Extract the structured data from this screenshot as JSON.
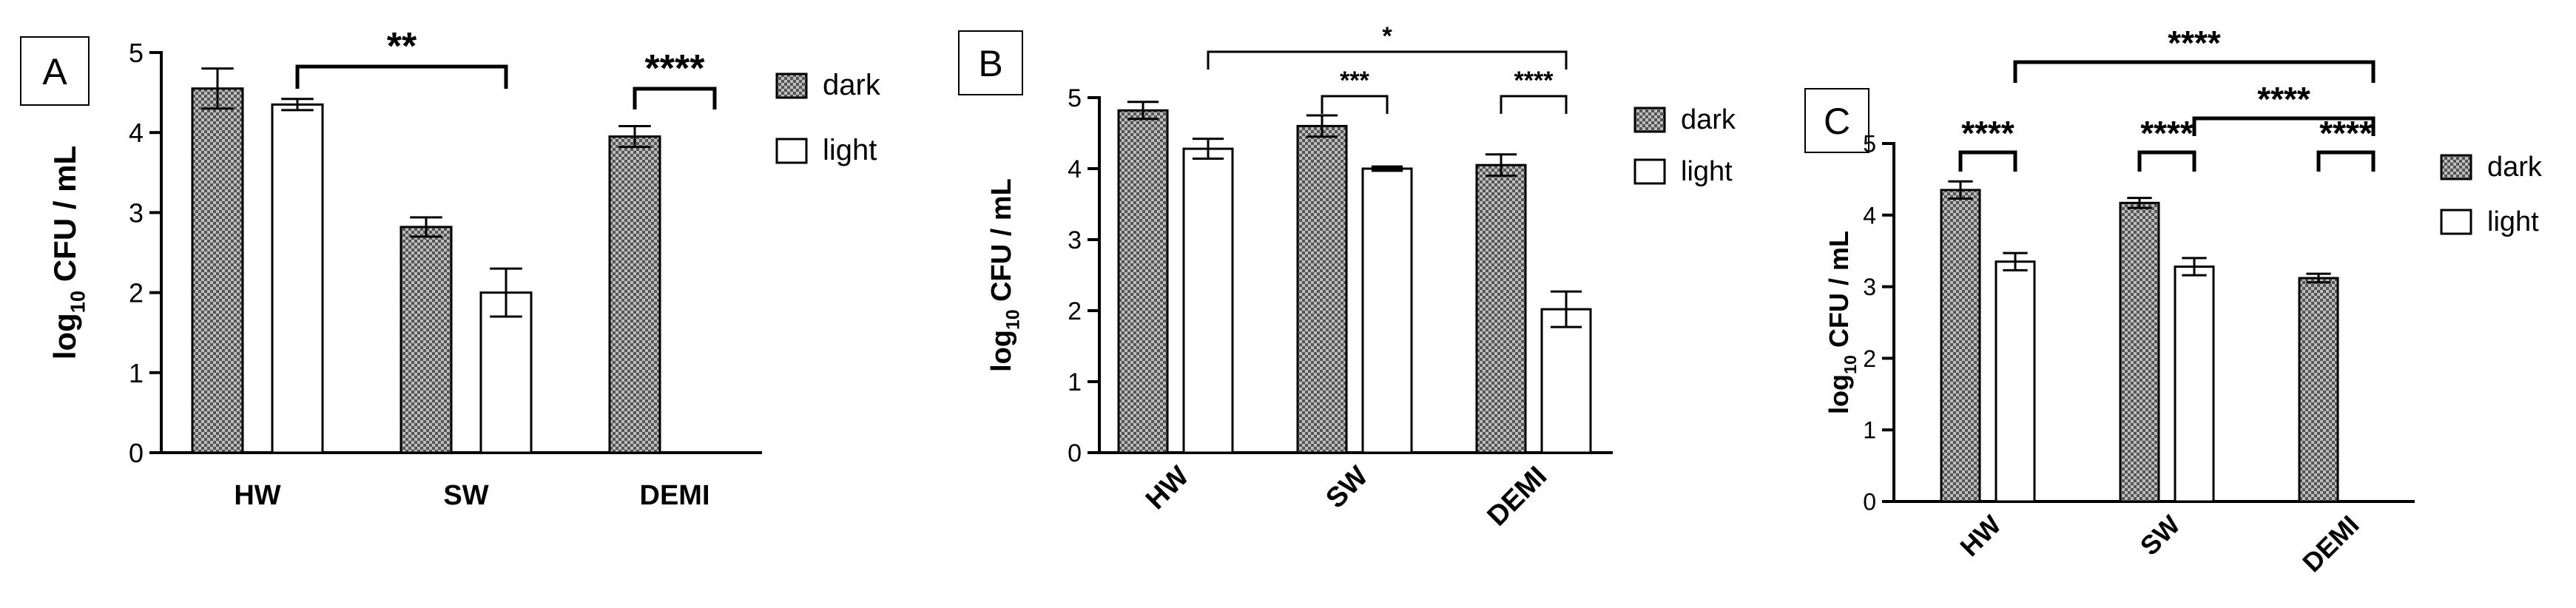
{
  "colors": {
    "dark_fill": "#555555",
    "dark_check": "#bdbdbd",
    "light_fill": "#ffffff",
    "stroke": "#000000"
  },
  "chart_data": [
    {
      "panel": "A",
      "type": "bar",
      "categories": [
        "HW",
        "SW",
        "DEMI"
      ],
      "ylabel": "log10 CFU / mL",
      "ylabel_main": "log",
      "ylabel_sub": "10",
      "ylabel_rest": " CFU / mL",
      "ylim": [
        0,
        5
      ],
      "yticks": [
        0,
        1,
        2,
        3,
        4,
        5
      ],
      "legend_position": "right",
      "series": [
        {
          "name": "dark",
          "pattern": "checkered",
          "values": [
            4.55,
            2.82,
            3.95
          ],
          "errors": [
            0.25,
            0.12,
            0.13
          ]
        },
        {
          "name": "light",
          "pattern": "hollow",
          "values": [
            4.35,
            2.0,
            null
          ],
          "errors": [
            0.07,
            0.3,
            null
          ]
        }
      ],
      "significance": [
        {
          "label": "**",
          "from": [
            0,
            1
          ],
          "to": [
            1,
            1
          ]
        },
        {
          "label": "****",
          "from": [
            2,
            0
          ],
          "to": [
            2,
            1
          ]
        }
      ]
    },
    {
      "panel": "B",
      "type": "bar",
      "categories": [
        "HW",
        "SW",
        "DEMI"
      ],
      "ylabel": "log10 CFU / mL",
      "ylabel_main": "log",
      "ylabel_sub": "10",
      "ylabel_rest": " CFU / mL",
      "ylim": [
        0,
        5
      ],
      "yticks": [
        0,
        1,
        2,
        3,
        4,
        5
      ],
      "legend_position": "right",
      "series": [
        {
          "name": "dark",
          "pattern": "checkered",
          "values": [
            4.82,
            4.6,
            4.05
          ],
          "errors": [
            0.12,
            0.15,
            0.15
          ]
        },
        {
          "name": "light",
          "pattern": "hollow",
          "values": [
            4.28,
            4.0,
            2.02
          ],
          "errors": [
            0.14,
            0.03,
            0.25
          ]
        }
      ],
      "significance": [
        {
          "label": "*",
          "from": [
            0,
            1
          ],
          "to": [
            2,
            1
          ]
        },
        {
          "label": "***",
          "from": [
            1,
            0
          ],
          "to": [
            1,
            1
          ]
        },
        {
          "label": "****",
          "from": [
            2,
            0
          ],
          "to": [
            2,
            1
          ]
        }
      ]
    },
    {
      "panel": "C",
      "type": "bar",
      "categories": [
        "HW",
        "SW",
        "DEMI"
      ],
      "ylabel": "log10 CFU / mL",
      "ylabel_main": "log",
      "ylabel_sub": "10",
      "ylabel_rest": " CFU / mL",
      "ylim": [
        0,
        5
      ],
      "yticks": [
        0,
        1,
        2,
        3,
        4,
        5
      ],
      "legend_position": "right",
      "series": [
        {
          "name": "dark",
          "pattern": "checkered",
          "values": [
            4.35,
            4.17,
            3.12
          ],
          "errors": [
            0.12,
            0.07,
            0.06
          ]
        },
        {
          "name": "light",
          "pattern": "hollow",
          "values": [
            3.35,
            3.28,
            null
          ],
          "errors": [
            0.12,
            0.12,
            null
          ]
        }
      ],
      "significance": [
        {
          "label": "****",
          "from": [
            0,
            0
          ],
          "to": [
            0,
            1
          ]
        },
        {
          "label": "****",
          "from": [
            1,
            0
          ],
          "to": [
            1,
            1
          ]
        },
        {
          "label": "****",
          "from": [
            1,
            1
          ],
          "to": [
            2,
            1
          ]
        },
        {
          "label": "****",
          "from": [
            2,
            0
          ],
          "to": [
            2,
            1
          ]
        },
        {
          "label": "****",
          "from": [
            0,
            1
          ],
          "to": [
            2,
            1
          ]
        }
      ]
    }
  ]
}
